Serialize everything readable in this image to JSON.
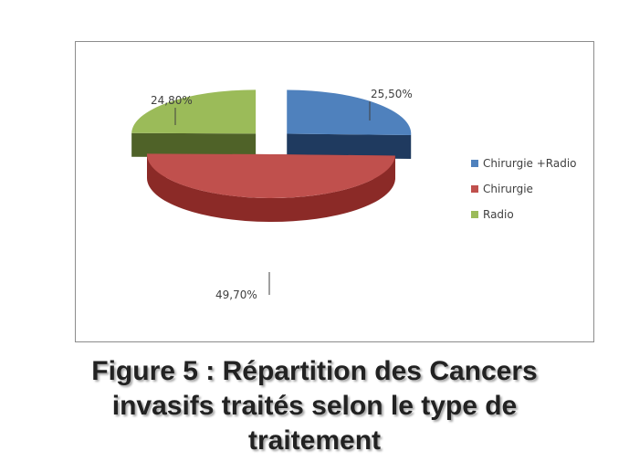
{
  "chart_data": {
    "type": "pie",
    "categories": [
      "Chirurgie +Radio",
      "Chirurgie",
      "Radio"
    ],
    "values": [
      25.5,
      49.7,
      24.8
    ],
    "data_labels": [
      "25,50%",
      "49,70%",
      "24,80%"
    ],
    "colors": [
      "#4f81bd",
      "#c0504d",
      "#9bbb59"
    ],
    "dark_colors": [
      "#1f3a5f",
      "#8b2a27",
      "#4f6228"
    ],
    "three_d": true,
    "exploded": true,
    "legend_position": "right"
  },
  "caption": {
    "line1": "Figure 5 : Répartition des Cancers",
    "line2": "invasifs traités selon le type de",
    "line3": "traitement"
  }
}
